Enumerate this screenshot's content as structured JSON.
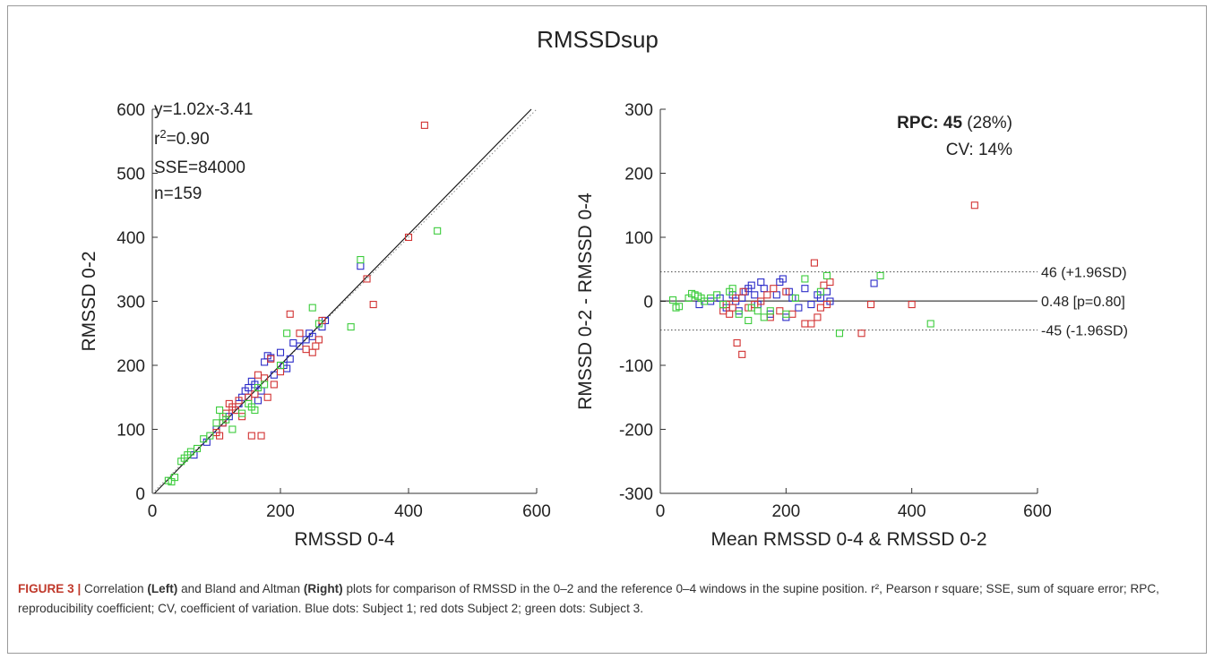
{
  "figure": {
    "title": "RMSSDsup"
  },
  "caption": {
    "label": "FIGURE 3 |",
    "parts": [
      {
        "text": " Correlation ",
        "bold": false
      },
      {
        "text": "(Left)",
        "bold": true
      },
      {
        "text": " and Bland and Altman ",
        "bold": false
      },
      {
        "text": "(Right)",
        "bold": true
      },
      {
        "text": " plots for comparison of RMSSD in the 0–2 and the reference 0–4 windows in the supine position. r², Pearson r square; SSE, sum of square error; RPC, reproducibility coefficient; CV, coefficient of variation. Blue dots: Subject 1; red dots Subject 2; green dots: Subject 3.",
        "bold": false
      }
    ]
  },
  "colors": {
    "subject1": "#2b2bc8",
    "subject2": "#d23232",
    "subject3": "#3ccc3c",
    "axis": "#333333",
    "fit_line": "#111111",
    "identity_line": "#888888"
  },
  "chart_data": [
    {
      "type": "scatter",
      "panel": "left",
      "xlabel": "RMSSD 0-4",
      "ylabel": "RMSSD 0-2",
      "xlim": [
        0,
        600
      ],
      "ylim": [
        0,
        600
      ],
      "xticks": [
        0,
        200,
        400,
        600
      ],
      "yticks": [
        0,
        100,
        200,
        300,
        400,
        500,
        600
      ],
      "annotations": [
        "y=1.02x-3.41",
        "r²=0.90",
        "SSE=84000",
        "n=159"
      ],
      "regression": {
        "slope": 1.02,
        "intercept": -3.41
      },
      "identity_line": true,
      "series": [
        {
          "subject": 1,
          "color_key": "subject1",
          "points": [
            [
              65,
              60
            ],
            [
              85,
              80
            ],
            [
              100,
              100
            ],
            [
              110,
              110
            ],
            [
              120,
              120
            ],
            [
              130,
              130
            ],
            [
              135,
              140
            ],
            [
              140,
              150
            ],
            [
              145,
              160
            ],
            [
              150,
              165
            ],
            [
              155,
              175
            ],
            [
              160,
              170
            ],
            [
              165,
              145
            ],
            [
              170,
              160
            ],
            [
              175,
              205
            ],
            [
              180,
              215
            ],
            [
              185,
              212
            ],
            [
              190,
              185
            ],
            [
              200,
              220
            ],
            [
              205,
              200
            ],
            [
              210,
              195
            ],
            [
              215,
              210
            ],
            [
              220,
              235
            ],
            [
              230,
              230
            ],
            [
              240,
              240
            ],
            [
              245,
              250
            ],
            [
              250,
              245
            ],
            [
              265,
              260
            ],
            [
              270,
              270
            ],
            [
              325,
              355
            ]
          ]
        },
        {
          "subject": 2,
          "color_key": "subject2",
          "points": [
            [
              100,
              95
            ],
            [
              105,
              90
            ],
            [
              110,
              110
            ],
            [
              115,
              125
            ],
            [
              120,
              140
            ],
            [
              125,
              135
            ],
            [
              130,
              130
            ],
            [
              135,
              145
            ],
            [
              140,
              120
            ],
            [
              150,
              150
            ],
            [
              155,
              90
            ],
            [
              160,
              155
            ],
            [
              165,
              185
            ],
            [
              170,
              90
            ],
            [
              175,
              180
            ],
            [
              180,
              150
            ],
            [
              185,
              210
            ],
            [
              190,
              170
            ],
            [
              200,
              190
            ],
            [
              215,
              280
            ],
            [
              230,
              250
            ],
            [
              240,
              225
            ],
            [
              250,
              220
            ],
            [
              255,
              230
            ],
            [
              260,
              240
            ],
            [
              265,
              270
            ],
            [
              335,
              335
            ],
            [
              345,
              295
            ],
            [
              400,
              400
            ],
            [
              425,
              575
            ]
          ]
        },
        {
          "subject": 3,
          "color_key": "subject3",
          "points": [
            [
              25,
              20
            ],
            [
              30,
              18
            ],
            [
              35,
              25
            ],
            [
              45,
              50
            ],
            [
              50,
              55
            ],
            [
              55,
              60
            ],
            [
              60,
              65
            ],
            [
              70,
              70
            ],
            [
              80,
              85
            ],
            [
              90,
              90
            ],
            [
              100,
              110
            ],
            [
              105,
              130
            ],
            [
              110,
              120
            ],
            [
              115,
              115
            ],
            [
              125,
              100
            ],
            [
              140,
              125
            ],
            [
              150,
              140
            ],
            [
              155,
              135
            ],
            [
              160,
              130
            ],
            [
              165,
              165
            ],
            [
              175,
              170
            ],
            [
              200,
              200
            ],
            [
              210,
              250
            ],
            [
              250,
              290
            ],
            [
              260,
              265
            ],
            [
              310,
              260
            ],
            [
              325,
              365
            ],
            [
              445,
              410
            ]
          ]
        }
      ]
    },
    {
      "type": "scatter",
      "panel": "right",
      "xlabel": "Mean RMSSD 0-4 & RMSSD 0-2",
      "ylabel": "RMSSD 0-2 - RMSSD 0-4",
      "xlim": [
        0,
        600
      ],
      "ylim": [
        -300,
        300
      ],
      "xticks": [
        0,
        200,
        400,
        600
      ],
      "yticks": [
        -300,
        -200,
        -100,
        0,
        100,
        200,
        300
      ],
      "rpc_label": "RPC:",
      "rpc_value": "45",
      "rpc_pct": " (28%)",
      "cv_text": "CV: 14%",
      "lines": [
        {
          "y": 46,
          "label": "46 (+1.96SD)",
          "style": "dotted"
        },
        {
          "y": 0.48,
          "label": "0.48 [p=0.80]",
          "style": "solid"
        },
        {
          "y": -45,
          "label": "-45 (-1.96SD)",
          "style": "dotted"
        }
      ],
      "series": [
        {
          "subject": 1,
          "color_key": "subject1",
          "points": [
            [
              62,
              -5
            ],
            [
              80,
              0
            ],
            [
              95,
              5
            ],
            [
              105,
              -10
            ],
            [
              115,
              10
            ],
            [
              120,
              0
            ],
            [
              125,
              -15
            ],
            [
              130,
              5
            ],
            [
              135,
              15
            ],
            [
              140,
              20
            ],
            [
              145,
              25
            ],
            [
              150,
              10
            ],
            [
              155,
              -5
            ],
            [
              160,
              30
            ],
            [
              165,
              20
            ],
            [
              175,
              -20
            ],
            [
              185,
              10
            ],
            [
              190,
              30
            ],
            [
              195,
              35
            ],
            [
              200,
              -25
            ],
            [
              205,
              15
            ],
            [
              210,
              5
            ],
            [
              220,
              -10
            ],
            [
              230,
              20
            ],
            [
              240,
              -5
            ],
            [
              250,
              10
            ],
            [
              255,
              5
            ],
            [
              265,
              15
            ],
            [
              270,
              0
            ],
            [
              340,
              28
            ]
          ]
        },
        {
          "subject": 2,
          "color_key": "subject2",
          "points": [
            [
              100,
              -15
            ],
            [
              105,
              -5
            ],
            [
              110,
              -20
            ],
            [
              115,
              -10
            ],
            [
              120,
              5
            ],
            [
              122,
              -65
            ],
            [
              130,
              -83
            ],
            [
              132,
              15
            ],
            [
              140,
              -10
            ],
            [
              150,
              -5
            ],
            [
              160,
              0
            ],
            [
              170,
              10
            ],
            [
              175,
              -25
            ],
            [
              180,
              20
            ],
            [
              190,
              -15
            ],
            [
              200,
              15
            ],
            [
              210,
              -20
            ],
            [
              230,
              -35
            ],
            [
              240,
              -35
            ],
            [
              245,
              60
            ],
            [
              250,
              -25
            ],
            [
              255,
              -10
            ],
            [
              260,
              25
            ],
            [
              265,
              -5
            ],
            [
              270,
              30
            ],
            [
              320,
              -50
            ],
            [
              335,
              -5
            ],
            [
              400,
              -5
            ],
            [
              500,
              150
            ]
          ]
        },
        {
          "subject": 3,
          "color_key": "subject3",
          "points": [
            [
              20,
              2
            ],
            [
              25,
              -10
            ],
            [
              30,
              -8
            ],
            [
              45,
              5
            ],
            [
              50,
              12
            ],
            [
              55,
              10
            ],
            [
              60,
              8
            ],
            [
              65,
              5
            ],
            [
              70,
              0
            ],
            [
              80,
              5
            ],
            [
              90,
              10
            ],
            [
              100,
              -5
            ],
            [
              110,
              15
            ],
            [
              115,
              20
            ],
            [
              125,
              -20
            ],
            [
              140,
              -30
            ],
            [
              145,
              -10
            ],
            [
              155,
              -15
            ],
            [
              165,
              -25
            ],
            [
              175,
              -15
            ],
            [
              200,
              -20
            ],
            [
              215,
              5
            ],
            [
              230,
              35
            ],
            [
              255,
              15
            ],
            [
              265,
              40
            ],
            [
              285,
              -50
            ],
            [
              350,
              40
            ],
            [
              430,
              -35
            ]
          ]
        }
      ]
    }
  ]
}
